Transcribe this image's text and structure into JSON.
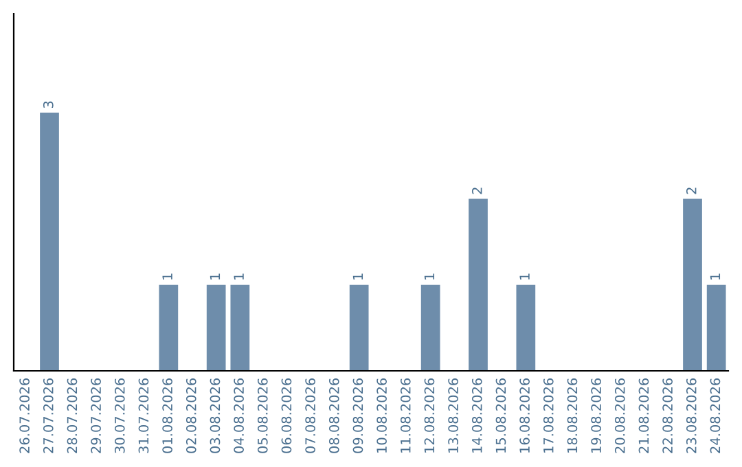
{
  "chart_data": {
    "type": "bar",
    "categories": [
      "26.07.2026",
      "27.07.2026",
      "28.07.2026",
      "29.07.2026",
      "30.07.2026",
      "31.07.2026",
      "01.08.2026",
      "02.08.2026",
      "03.08.2026",
      "04.08.2026",
      "05.08.2026",
      "06.08.2026",
      "07.08.2026",
      "08.08.2026",
      "09.08.2026",
      "10.08.2026",
      "11.08.2026",
      "12.08.2026",
      "13.08.2026",
      "14.08.2026",
      "15.08.2026",
      "16.08.2026",
      "17.08.2026",
      "18.08.2026",
      "19.08.2026",
      "20.08.2026",
      "21.08.2026",
      "22.08.2026",
      "23.08.2026",
      "24.08.2026"
    ],
    "values": [
      0,
      3,
      0,
      0,
      0,
      0,
      1,
      0,
      1,
      1,
      0,
      0,
      0,
      0,
      1,
      0,
      0,
      1,
      0,
      2,
      0,
      1,
      0,
      0,
      0,
      0,
      0,
      0,
      2,
      1
    ],
    "value_labels": [
      null,
      "3",
      null,
      null,
      null,
      null,
      "1",
      null,
      "1",
      "1",
      null,
      null,
      null,
      null,
      "1",
      null,
      null,
      "1",
      null,
      "2",
      null,
      "1",
      null,
      null,
      null,
      null,
      null,
      null,
      "2",
      "1"
    ],
    "color": "#6e8dab",
    "ylim": [
      0,
      4.15
    ],
    "tick_labels": "x",
    "grid": false
  }
}
